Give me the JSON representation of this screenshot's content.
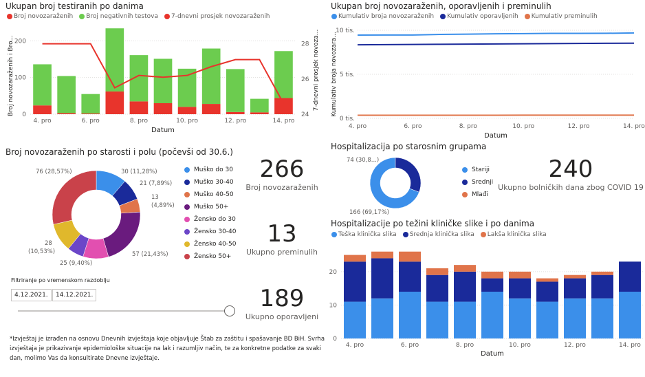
{
  "colors": {
    "green": "#6ccc4f",
    "red": "#e8342c",
    "light_blue": "#3b8fea",
    "dark_blue": "#1a2a9a",
    "orange": "#e0744a"
  },
  "panel1": {
    "title": "Ukupan broj testiranih po danima",
    "legend": [
      "Broj novozaraženih",
      "Broj negativnih testova",
      "7-dnevni prosjek novozaraženih"
    ],
    "ylabel_left": "Broj novozaraženih i Bro...",
    "ylabel_right": "7-dnevni prosjek novoza...",
    "xlabel": "Datum"
  },
  "panel2": {
    "title": "Ukupan broj novozaraženih, oporavljenih i preminulih",
    "legend": [
      "Kumulativ broja novozaraženih",
      "Kumulativ oporavljenih",
      "Kumulativ preminulih"
    ],
    "ylabel": "Kumulativ broja novozara...",
    "xlabel": "Datum"
  },
  "panel3": {
    "title": "Broj novozaraženih po starosti i polu (počevši od 30.6.)",
    "legend": [
      "Muško do 30",
      "Muško 30-40",
      "Muško 40-50",
      "Muško 50+",
      "Žensko do 30",
      "Žensko 30-40",
      "Žensko 40-50",
      "Žensko 50+"
    ],
    "slice_labels": [
      "30 (11,28%)",
      "21 (7,89%)",
      "13",
      "(4,89%)",
      "57 (21,43%)",
      "25 (9,40%)",
      "28",
      "(10,53%)",
      "76 (28,57%)"
    ]
  },
  "kpis": {
    "cases_value": "266",
    "cases_label": "Broj novozaraženih",
    "deaths_value": "13",
    "deaths_label": "Ukupno preminulih",
    "recovered_value": "189",
    "recovered_label": "Ukupno oporavljeni",
    "hosp_days_value": "240",
    "hosp_days_label": "Ukupno bolničkih dana zbog COVID 19"
  },
  "filter": {
    "label": "Filtriranje po vremenskom razdoblju",
    "from": "4.12.2021.",
    "to": "14.12.2021."
  },
  "footnote": {
    "line1": "*Izvještaj je izrađen na osnovu Dnevnih izvještaja koje objavljuje Štab za zaštitu i spašavanje BD BiH. Svrha",
    "line2": "izvještaja je prikazivanje epidemiološke situacije na lak i razumljiv način, te za konkretne podatke za svaki",
    "line3": "dan, molimo Vas da konsultirate Dnevne izvještaje."
  },
  "panel4": {
    "title": "Hospitalizacija po starosnim grupama",
    "legend": [
      "Stariji",
      "Srednji",
      "Mlađi"
    ],
    "labels": [
      "74 (30,8...)",
      "166 (69,17%)"
    ]
  },
  "panel5": {
    "title": "Hospitalizacije po težini kliničke slike i po danima",
    "legend": [
      "Teška klinička slika",
      "Srednja klinička slika",
      "Lakša klinička slika"
    ],
    "xlabel": "Datum"
  },
  "chart_data": [
    {
      "type": "bar",
      "id": "tests",
      "title": "Ukupan broj testiranih po danima",
      "categories": [
        "4. pro",
        "5. pro",
        "6. pro",
        "7. pro",
        "8. pro",
        "9. pro",
        "10. pro",
        "11. pro",
        "12. pro",
        "13. pro",
        "14. pro"
      ],
      "tick_labels": [
        "4. pro",
        "6. pro",
        "8. pro",
        "10. pro",
        "12. pro",
        "14. pro"
      ],
      "series": [
        {
          "name": "Broj novozaraženih",
          "values": [
            24,
            3,
            2,
            62,
            35,
            30,
            20,
            28,
            6,
            5,
            44
          ]
        },
        {
          "name": "Broj negativnih testova",
          "values": [
            112,
            101,
            53,
            172,
            126,
            121,
            104,
            151,
            117,
            37,
            128
          ]
        },
        {
          "name": "7-dnevni prosjek novozaraženih",
          "values": [
            28.0,
            28.0,
            28.0,
            25.5,
            26.2,
            26.1,
            26.2,
            26.7,
            27.1,
            27.1,
            24.6
          ]
        }
      ],
      "ylim_left": [
        0,
        240
      ],
      "yticks_left": [
        "0",
        "100",
        "200"
      ],
      "ylim_right": [
        24,
        29
      ],
      "yticks_right": [
        "24",
        "26",
        "28"
      ],
      "xlabel": "Datum"
    },
    {
      "type": "line",
      "id": "cumulative",
      "title": "Ukupan broj novozaraženih, oporavljenih i preminulih",
      "x": [
        "4. pro",
        "5. pro",
        "6. pro",
        "7. pro",
        "8. pro",
        "9. pro",
        "10. pro",
        "11. pro",
        "12. pro",
        "13. pro",
        "14. pro"
      ],
      "tick_labels": [
        "4. pro",
        "6. pro",
        "8. pro",
        "10. pro",
        "12. pro",
        "14. pro"
      ],
      "series": [
        {
          "name": "Kumulativ broja novozaraženih",
          "values": [
            9450,
            9460,
            9465,
            9530,
            9565,
            9595,
            9615,
            9645,
            9650,
            9655,
            9700
          ]
        },
        {
          "name": "Kumulativ oporavljenih",
          "values": [
            8350,
            8370,
            8390,
            8410,
            8430,
            8450,
            8470,
            8490,
            8510,
            8525,
            8540
          ]
        },
        {
          "name": "Kumulativ preminulih",
          "values": [
            350,
            351,
            352,
            353,
            355,
            356,
            358,
            359,
            360,
            361,
            363
          ]
        }
      ],
      "ylim": [
        0,
        10000
      ],
      "yticks": [
        "0 tis.",
        "5 tis.",
        "10 tis."
      ],
      "xlabel": "Datum"
    },
    {
      "type": "pie",
      "id": "age_sex",
      "title": "Broj novozaraženih po starosti i polu (počevši od 30.6.)",
      "labels": [
        "Muško do 30",
        "Muško 30-40",
        "Muško 40-50",
        "Muško 50+",
        "Žensko do 30",
        "Žensko 30-40",
        "Žensko 40-50",
        "Žensko 50+"
      ],
      "values": [
        30,
        21,
        13,
        57,
        25,
        16,
        28,
        76
      ],
      "colors": [
        "#3b8fea",
        "#1a2a9a",
        "#e0744a",
        "#6a1b7e",
        "#e24fb0",
        "#6b46c8",
        "#e0b82c",
        "#c9424a"
      ]
    },
    {
      "type": "pie",
      "id": "hosp_age",
      "title": "Hospitalizacija po starosnim grupama",
      "labels": [
        "Stariji",
        "Srednji",
        "Mlađi"
      ],
      "values": [
        166,
        74,
        0
      ],
      "colors": [
        "#3b8fea",
        "#1a2a9a",
        "#e0744a"
      ]
    },
    {
      "type": "bar",
      "id": "hosp_severity",
      "title": "Hospitalizacije po težini kliničke slike i po danima",
      "categories": [
        "4. pro",
        "5. pro",
        "6. pro",
        "7. pro",
        "8. pro",
        "9. pro",
        "10. pro",
        "11. pro",
        "12. pro",
        "13. pro",
        "14. pro"
      ],
      "tick_labels": [
        "4. pro",
        "6. pro",
        "8. pro",
        "10. pro",
        "12. pro",
        "14. pro"
      ],
      "series": [
        {
          "name": "Teška klinička slika",
          "values": [
            11,
            12,
            14,
            11,
            11,
            14,
            12,
            11,
            12,
            12,
            14
          ]
        },
        {
          "name": "Srednja klinička slika",
          "values": [
            12,
            12,
            9,
            8,
            9,
            4,
            6,
            6,
            6,
            7,
            9
          ]
        },
        {
          "name": "Lakša klinička slika",
          "values": [
            2,
            2,
            3,
            2,
            2,
            2,
            2,
            1,
            1,
            1,
            0
          ]
        }
      ],
      "ylim": [
        0,
        28
      ],
      "yticks": [
        "0",
        "10",
        "20"
      ],
      "xlabel": "Datum"
    }
  ]
}
